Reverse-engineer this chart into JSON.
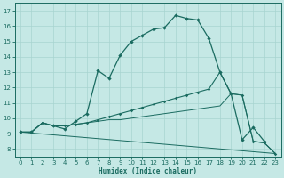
{
  "xlabel": "Humidex (Indice chaleur)",
  "bg_color": "#c5e8e5",
  "grid_color": "#a8d4d0",
  "line_color": "#1a6b60",
  "xlim": [
    -0.5,
    23.5
  ],
  "ylim": [
    7.5,
    17.5
  ],
  "xticks": [
    0,
    1,
    2,
    3,
    4,
    5,
    6,
    7,
    8,
    9,
    10,
    11,
    12,
    13,
    14,
    15,
    16,
    17,
    18,
    19,
    20,
    21,
    22,
    23
  ],
  "yticks": [
    8,
    9,
    10,
    11,
    12,
    13,
    14,
    15,
    16,
    17
  ],
  "curve1_x": [
    0,
    1,
    2,
    3,
    4,
    5,
    6,
    7,
    8,
    9,
    10,
    11,
    12,
    13,
    14,
    15,
    16,
    17,
    18,
    19,
    20,
    21,
    22
  ],
  "curve1_y": [
    9.1,
    9.1,
    9.7,
    9.5,
    9.3,
    9.8,
    10.3,
    13.1,
    12.6,
    14.1,
    15.0,
    15.4,
    15.8,
    15.9,
    16.7,
    16.5,
    16.4,
    15.2,
    13.0,
    11.6,
    8.6,
    9.4,
    8.5
  ],
  "line2_x": [
    0,
    1,
    2,
    3,
    4,
    5,
    6,
    7,
    8,
    9,
    10,
    11,
    12,
    13,
    14,
    15,
    16,
    17,
    18,
    19,
    20,
    21,
    22,
    23
  ],
  "line2_y": [
    9.1,
    9.1,
    9.7,
    9.5,
    9.5,
    9.6,
    9.7,
    9.9,
    10.1,
    10.3,
    10.5,
    10.7,
    10.9,
    11.1,
    11.3,
    11.5,
    11.7,
    11.9,
    13.0,
    11.6,
    11.5,
    8.5,
    8.4,
    7.7
  ],
  "line3_x": [
    0,
    1,
    2,
    3,
    4,
    5,
    6,
    7,
    8,
    9,
    10,
    11,
    12,
    13,
    14,
    15,
    16,
    17,
    18,
    19,
    20,
    21,
    22,
    23
  ],
  "line3_y": [
    9.1,
    9.1,
    9.7,
    9.5,
    9.5,
    9.6,
    9.7,
    9.8,
    9.9,
    9.9,
    10.0,
    10.1,
    10.2,
    10.3,
    10.4,
    10.5,
    10.6,
    10.7,
    10.8,
    11.6,
    11.5,
    8.5,
    8.4,
    7.7
  ],
  "line4_x": [
    0,
    23
  ],
  "line4_y": [
    9.1,
    7.7
  ]
}
